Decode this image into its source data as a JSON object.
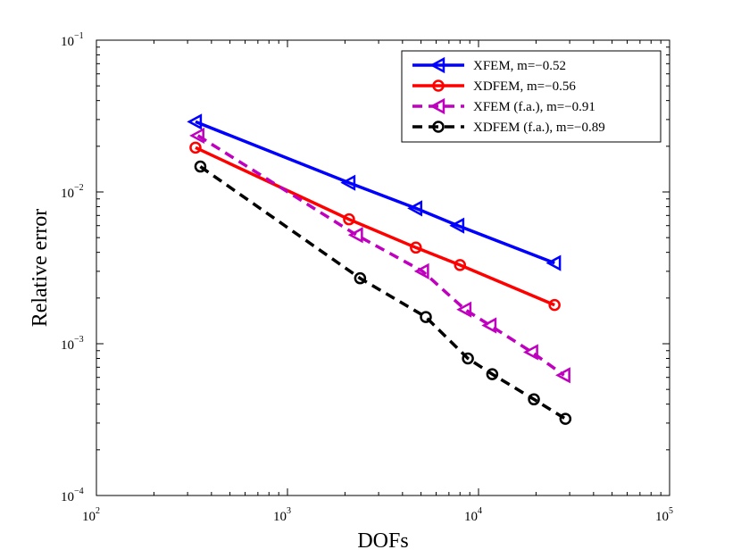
{
  "chart_data": {
    "type": "line",
    "title": "",
    "xlabel": "DOFs",
    "ylabel": "Relative error",
    "xscale": "log",
    "yscale": "log",
    "xlim": [
      100,
      100000
    ],
    "ylim": [
      0.0001,
      0.1
    ],
    "grid": false,
    "legend_position": "top-right",
    "x_ticks": [
      {
        "base": "10",
        "exp": "2"
      },
      {
        "base": "10",
        "exp": "3"
      },
      {
        "base": "10",
        "exp": "4"
      },
      {
        "base": "10",
        "exp": "5"
      }
    ],
    "y_ticks": [
      {
        "base": "10",
        "exp": "−4"
      },
      {
        "base": "10",
        "exp": "−3"
      },
      {
        "base": "10",
        "exp": "−2"
      },
      {
        "base": "10",
        "exp": "−1"
      }
    ],
    "series": [
      {
        "name": "XFEM, m=−0.52",
        "color": "#0000ff",
        "line_style": "solid",
        "marker": "triangle-left",
        "x": [
          330,
          2100,
          4700,
          7800,
          25000
        ],
        "y": [
          0.029,
          0.0115,
          0.0078,
          0.006,
          0.0034
        ]
      },
      {
        "name": "XDFEM, m=−0.56",
        "color": "#ff0000",
        "line_style": "solid",
        "marker": "circle",
        "x": [
          330,
          2100,
          4700,
          8000,
          25000
        ],
        "y": [
          0.0196,
          0.0066,
          0.0043,
          0.0033,
          0.0018
        ]
      },
      {
        "name": "XFEM (f.a.), m=−0.91",
        "color": "#bf00bf",
        "line_style": "dashed",
        "marker": "triangle-left",
        "x": [
          340,
          2300,
          5100,
          8500,
          11500,
          19000,
          28000
        ],
        "y": [
          0.0235,
          0.0052,
          0.003,
          0.00168,
          0.00132,
          0.00088,
          0.00062
        ]
      },
      {
        "name": "XDFEM (f.a.), m=−0.89",
        "color": "#000000",
        "line_style": "dashed",
        "marker": "circle",
        "x": [
          350,
          2400,
          5300,
          8800,
          11800,
          19500,
          28500
        ],
        "y": [
          0.0147,
          0.0027,
          0.0015,
          0.0008,
          0.00063,
          0.00043,
          0.00032
        ]
      }
    ]
  }
}
